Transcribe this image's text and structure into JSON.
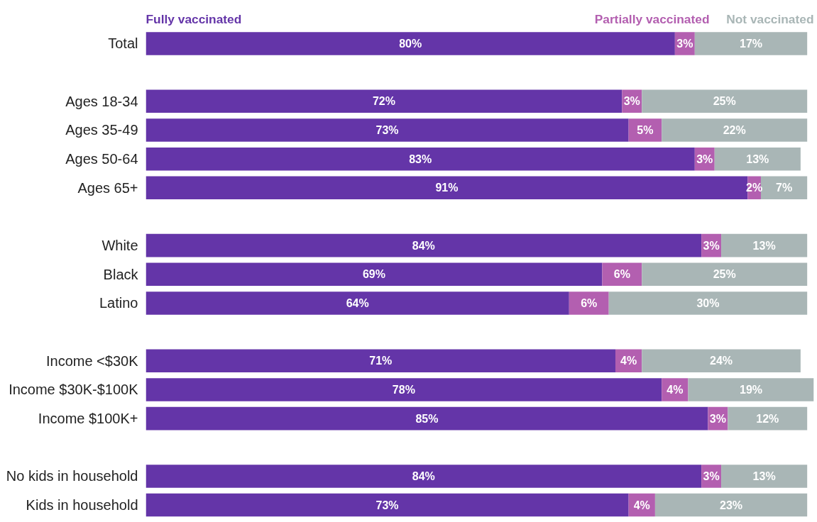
{
  "chart_data": {
    "type": "bar",
    "orientation": "horizontal",
    "stacked": true,
    "legend": "top",
    "tick_labels": "y",
    "xlim": [
      0,
      101
    ],
    "categories": [
      "Total",
      null,
      "Ages 18-34",
      "Ages 35-49",
      "Ages 50-64",
      "Ages 65+",
      null,
      "White",
      "Black",
      "Latino",
      null,
      "Income <$30K",
      "Income $30K-$100K",
      "Income $100K+",
      null,
      "No kids in household",
      "Kids in household"
    ],
    "series": [
      {
        "name": "Fully vaccinated",
        "color": "#6435a8",
        "values": [
          80,
          null,
          72,
          73,
          83,
          91,
          null,
          84,
          69,
          64,
          null,
          71,
          78,
          85,
          null,
          84,
          73
        ],
        "value_labels": [
          "80%",
          null,
          "72%",
          "73%",
          "83%",
          "91%",
          null,
          "84%",
          "69%",
          "64%",
          null,
          "71%",
          "78%",
          "85%",
          null,
          "84%",
          "73%"
        ]
      },
      {
        "name": "Partially vaccinated",
        "color": "#b35fb0",
        "values": [
          3,
          null,
          3,
          5,
          3,
          2,
          null,
          3,
          6,
          6,
          null,
          4,
          4,
          3,
          null,
          3,
          4
        ],
        "value_labels": [
          "3%",
          null,
          "3%",
          "5%",
          "3%",
          "2%",
          null,
          "3%",
          "6%",
          "6%",
          null,
          "4%",
          "4%",
          "3%",
          null,
          "3%",
          "4%"
        ]
      },
      {
        "name": "Not vaccinated",
        "color": "#a9b6b6",
        "values": [
          17,
          null,
          25,
          22,
          13,
          7,
          null,
          13,
          25,
          30,
          null,
          24,
          19,
          12,
          null,
          13,
          23
        ],
        "value_labels": [
          "17%",
          null,
          "25%",
          "22%",
          "13%",
          "7%",
          null,
          "13%",
          "25%",
          "30%",
          null,
          "24%",
          "19%",
          "12%",
          null,
          "13%",
          "23%"
        ]
      }
    ]
  }
}
